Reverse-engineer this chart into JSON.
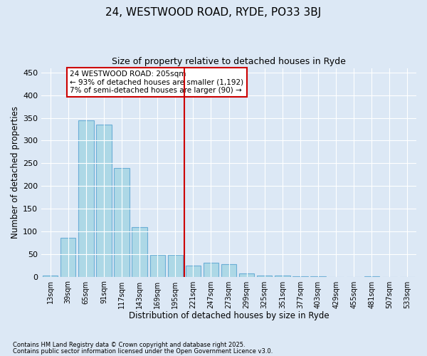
{
  "title1": "24, WESTWOOD ROAD, RYDE, PO33 3BJ",
  "title2": "Size of property relative to detached houses in Ryde",
  "xlabel": "Distribution of detached houses by size in Ryde",
  "ylabel": "Number of detached properties",
  "bar_labels": [
    "13sqm",
    "39sqm",
    "65sqm",
    "91sqm",
    "117sqm",
    "143sqm",
    "169sqm",
    "195sqm",
    "221sqm",
    "247sqm",
    "273sqm",
    "299sqm",
    "325sqm",
    "351sqm",
    "377sqm",
    "403sqm",
    "429sqm",
    "455sqm",
    "481sqm",
    "507sqm",
    "533sqm"
  ],
  "bar_values": [
    3,
    85,
    345,
    335,
    240,
    110,
    48,
    48,
    25,
    30,
    28,
    7,
    3,
    3,
    1,
    1,
    0,
    0,
    1,
    0,
    0
  ],
  "bar_color": "#add8e6",
  "bar_edge_color": "#6baed6",
  "ylim": [
    0,
    460
  ],
  "yticks": [
    0,
    50,
    100,
    150,
    200,
    250,
    300,
    350,
    400,
    450
  ],
  "vline_x": 7.5,
  "vline_color": "#cc0000",
  "annotation_text": "24 WESTWOOD ROAD: 205sqm\n← 93% of detached houses are smaller (1,192)\n7% of semi-detached houses are larger (90) →",
  "annotation_box_facecolor": "#ffffff",
  "annotation_box_edgecolor": "#cc0000",
  "footnote1": "Contains HM Land Registry data © Crown copyright and database right 2025.",
  "footnote2": "Contains public sector information licensed under the Open Government Licence v3.0.",
  "background_color": "#dce8f5",
  "plot_bg_color": "#dce8f5",
  "grid_color": "#ffffff"
}
